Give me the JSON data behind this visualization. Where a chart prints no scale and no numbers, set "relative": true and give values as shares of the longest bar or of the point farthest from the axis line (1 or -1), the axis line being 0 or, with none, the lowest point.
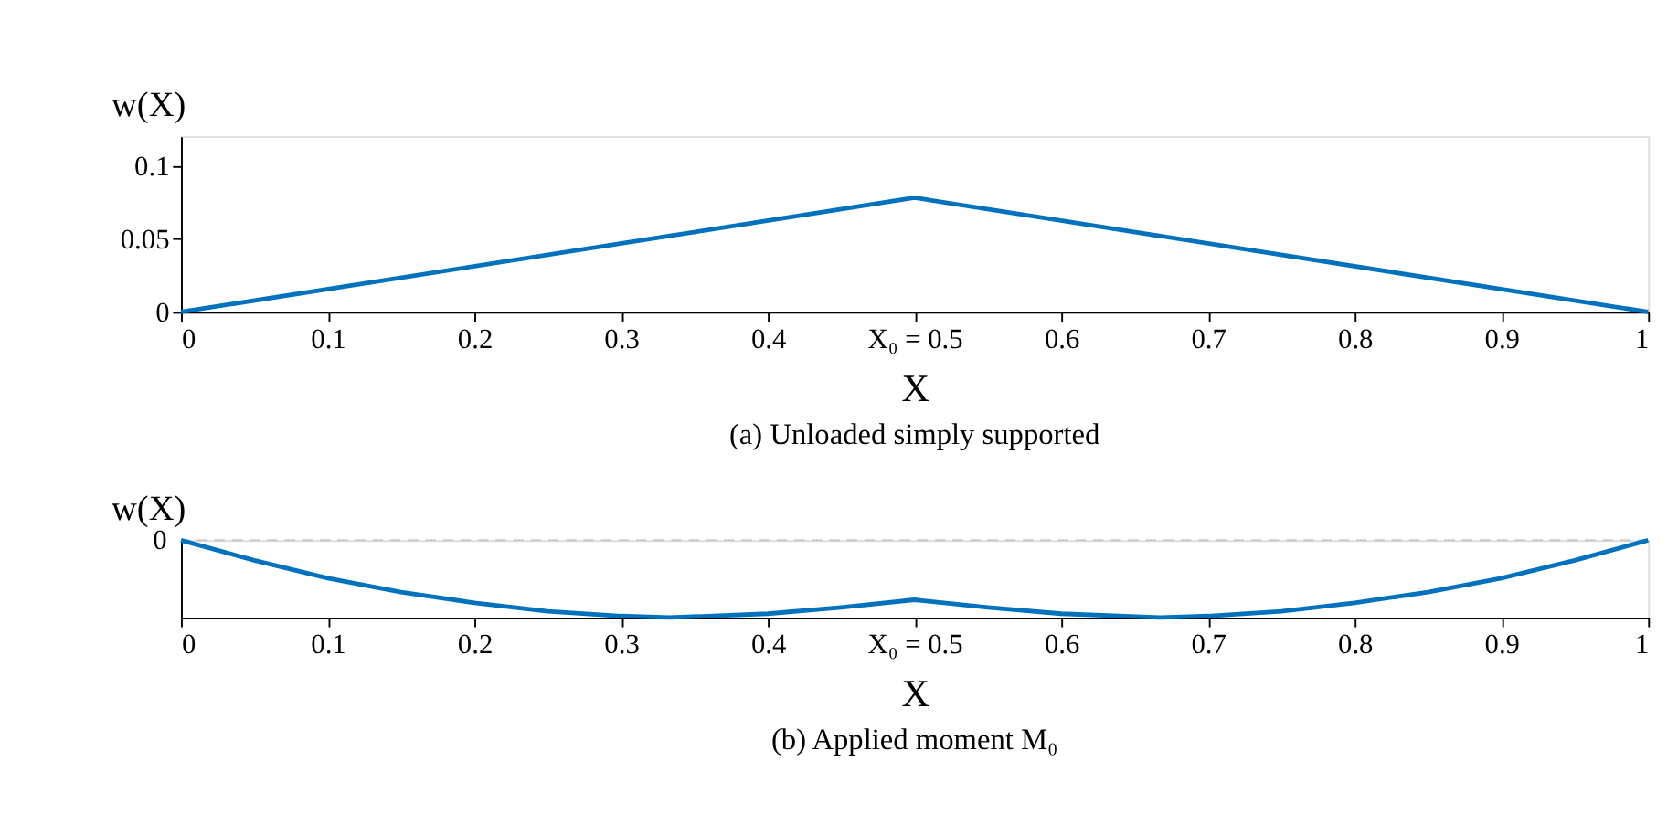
{
  "chart_data": [
    {
      "type": "line",
      "title": "(a) Unloaded simply supported",
      "xlabel": "X",
      "ylabel": "w(X)",
      "x": [
        0,
        0.5,
        1
      ],
      "series": [
        {
          "color": "#0072bd",
          "values": [
            0,
            0.078,
            0
          ]
        }
      ],
      "xlim": [
        0,
        1
      ],
      "xticks": [
        0,
        0.1,
        0.2,
        0.3,
        0.4,
        {
          "value": 0.5,
          "label": "X₀ = 0.5"
        },
        0.6,
        0.7,
        0.8,
        0.9,
        1
      ],
      "ylim": [
        0,
        0.12
      ],
      "yticks": [
        0,
        0.05,
        0.1
      ],
      "grid": false,
      "marker": "none",
      "line_style": "solid"
    },
    {
      "type": "line",
      "title": "(b) Applied moment M₀",
      "xlabel": "X",
      "ylabel": "w(X)",
      "relative": true,
      "tick_labels": "x",
      "x": [
        0,
        0.05,
        0.1,
        0.15,
        0.2,
        0.25,
        0.3,
        0.333,
        0.4,
        0.45,
        0.5,
        0.55,
        0.6,
        0.667,
        0.7,
        0.75,
        0.8,
        0.85,
        0.9,
        0.95,
        1
      ],
      "series": [
        {
          "color": "#0072bd",
          "values": [
            0,
            -0.26,
            -0.49,
            -0.67,
            -0.81,
            -0.92,
            -0.98,
            -1,
            -0.95,
            -0.87,
            -0.77,
            -0.87,
            -0.95,
            -1,
            -0.98,
            -0.92,
            -0.81,
            -0.67,
            -0.49,
            -0.26,
            0
          ]
        }
      ],
      "xlim": [
        0,
        1
      ],
      "xticks": [
        0,
        0.1,
        0.2,
        0.3,
        0.4,
        {
          "value": 0.5,
          "label": "X₀ = 0.5"
        },
        0.6,
        0.7,
        0.8,
        0.9,
        1
      ],
      "ref_lines": [
        {
          "axis": "y",
          "value": 0,
          "label": "0",
          "color": "#cccccc",
          "line_style": "dashed"
        }
      ],
      "grid": false,
      "marker": "none",
      "line_style": "solid"
    }
  ]
}
